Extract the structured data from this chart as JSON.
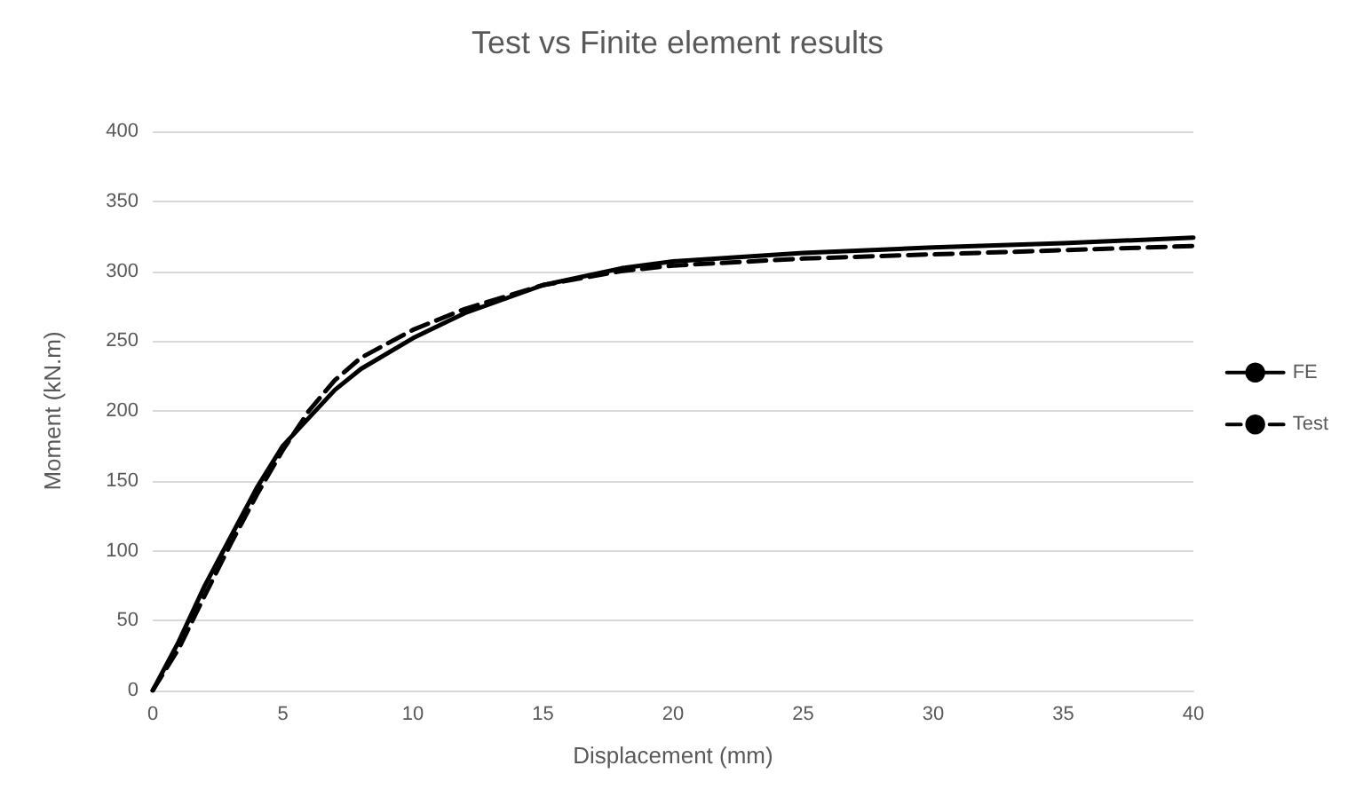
{
  "chart_data": {
    "type": "line",
    "title": "Test vs Finite element results",
    "xlabel": "Displacement (mm)",
    "ylabel": "Moment (kN.m)",
    "xlim": [
      0,
      40
    ],
    "xticks": [
      0,
      5,
      10,
      15,
      20,
      25,
      30,
      35,
      40
    ],
    "ylim": [
      0,
      400
    ],
    "yticks": [
      0,
      50,
      100,
      150,
      200,
      250,
      300,
      350,
      400
    ],
    "grid": "y",
    "legend": "right",
    "marker": "none",
    "series": [
      {
        "name": "FE",
        "color": "#000000",
        "line_style": "solid",
        "x": [
          0,
          1,
          2,
          3,
          4,
          5,
          6,
          7,
          8,
          10,
          12,
          15,
          18,
          20,
          25,
          30,
          35,
          40
        ],
        "values": [
          0,
          35,
          75,
          110,
          145,
          175,
          195,
          215,
          230,
          252,
          270,
          290,
          302,
          307,
          313,
          317,
          320,
          324
        ]
      },
      {
        "name": "Test",
        "color": "#000000",
        "line_style": "dashed",
        "x": [
          0,
          1,
          2,
          3,
          4,
          5,
          6,
          7,
          8,
          10,
          12,
          15,
          18,
          20,
          25,
          30,
          35,
          40
        ],
        "values": [
          0,
          30,
          68,
          105,
          140,
          172,
          200,
          222,
          238,
          258,
          273,
          290,
          300,
          304,
          309,
          312,
          315,
          318
        ]
      }
    ]
  }
}
